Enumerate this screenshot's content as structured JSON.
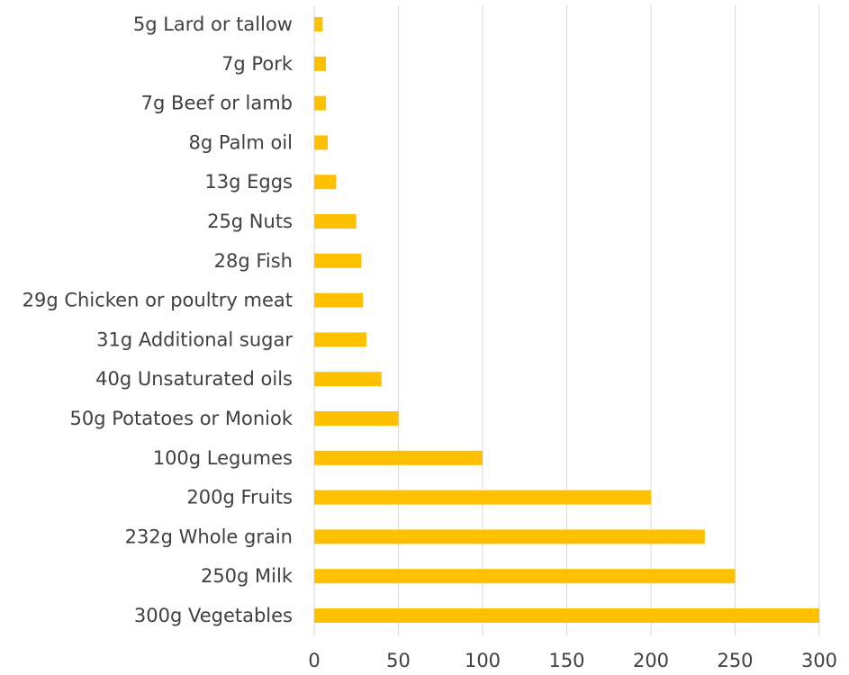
{
  "chart_data": {
    "type": "bar",
    "orientation": "horizontal",
    "categories": [
      "5g Lard or tallow",
      "7g Pork",
      "7g Beef or lamb",
      "8g Palm oil",
      "13g Eggs",
      "25g Nuts",
      "28g Fish",
      "29g Chicken or poultry meat",
      "31g Additional sugar",
      "40g Unsaturated oils",
      "50g Potatoes or Moniok",
      "100g Legumes",
      "200g Fruits",
      "232g Whole grain",
      "250g Milk",
      "300g Vegetables"
    ],
    "values": [
      5,
      7,
      7,
      8,
      13,
      25,
      28,
      29,
      31,
      40,
      50,
      100,
      200,
      232,
      250,
      300
    ],
    "xlim": [
      0,
      300
    ],
    "xticks": [
      0,
      50,
      100,
      150,
      200,
      250,
      300
    ],
    "xtick_labels": [
      "0",
      "50",
      "100",
      "150",
      "200",
      "250",
      "300"
    ],
    "grid": "vertical",
    "bar_color": "#FFC000",
    "legend": "none"
  }
}
